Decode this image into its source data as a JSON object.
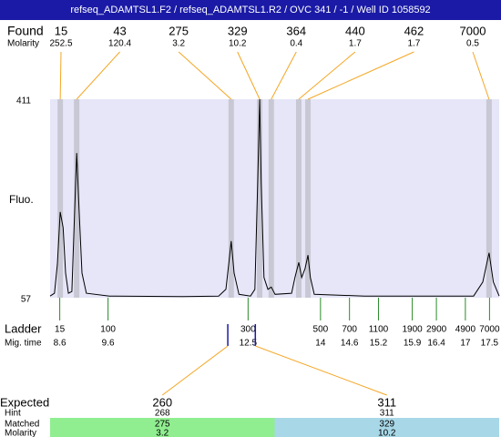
{
  "chart_data": {
    "type": "electropherogram",
    "title": "refseq_ADAMTSL1.F2 / refseq_ADAMTSL1.R2 / OVC 341 / -1 / Well ID 1058592",
    "labels": {
      "found": "Found",
      "found_molarity": "Molarity",
      "fluo": "Fluo.",
      "ladder": "Ladder",
      "mig_time": "Mig. time",
      "expected": "Expected",
      "hint": "Hint",
      "matched": "Matched",
      "molarity": "Molarity"
    },
    "xlim": [
      8.4,
      17.7
    ],
    "ylim": [
      57,
      411
    ],
    "yticks": [
      57,
      411
    ],
    "plot_color": "#e6e6f8",
    "band_color": "#c8c8d4",
    "connector_color": "#f5a623",
    "ladder_color": "#2a8a2a",
    "found": {
      "sizes": [
        15,
        43,
        275,
        329,
        364,
        440,
        462,
        7000
      ],
      "molarity": [
        252.5,
        120.4,
        3.2,
        10.2,
        0.4,
        1.7,
        1.7,
        0.5
      ],
      "x": [
        8.61,
        8.95,
        12.15,
        12.74,
        12.98,
        13.55,
        13.74,
        17.49
      ]
    },
    "ladder": {
      "sizes": [
        15,
        100,
        300,
        500,
        700,
        1100,
        1900,
        2900,
        4900,
        7000
      ],
      "x": [
        8.6,
        9.6,
        12.5,
        14,
        14.6,
        15.2,
        15.9,
        16.4,
        17,
        17.5
      ]
    },
    "expected": [
      {
        "size": 260,
        "hint": 268,
        "matched": 275,
        "molarity": 3.2,
        "x": 12.08,
        "color": "#90ee90"
      },
      {
        "size": 311,
        "hint": 311,
        "matched": 329,
        "molarity": 10.2,
        "x": 12.65,
        "color": "#a8d8e8"
      }
    ],
    "trace": {
      "color": "#000000",
      "x": [
        8.4,
        8.49,
        8.55,
        8.61,
        8.67,
        8.72,
        8.78,
        8.85,
        8.91,
        8.95,
        9.0,
        9.06,
        9.15,
        9.63,
        11.14,
        11.89,
        12.04,
        12.1,
        12.15,
        12.21,
        12.31,
        12.55,
        12.64,
        12.7,
        12.74,
        12.77,
        12.83,
        12.91,
        12.98,
        13.06,
        13.4,
        13.47,
        13.55,
        13.61,
        13.68,
        13.74,
        13.79,
        13.87,
        14.91,
        17.17,
        17.36,
        17.49,
        17.58,
        17.7
      ],
      "values": [
        60,
        65,
        117,
        210,
        182,
        101,
        65,
        68,
        214,
        315,
        214,
        101,
        65,
        60,
        59,
        60,
        72,
        117,
        158,
        101,
        63,
        60,
        72,
        263,
        411,
        263,
        93,
        72,
        76,
        63,
        65,
        93,
        120,
        93,
        109,
        133,
        93,
        63,
        60,
        60,
        85,
        137,
        85,
        60
      ]
    }
  }
}
